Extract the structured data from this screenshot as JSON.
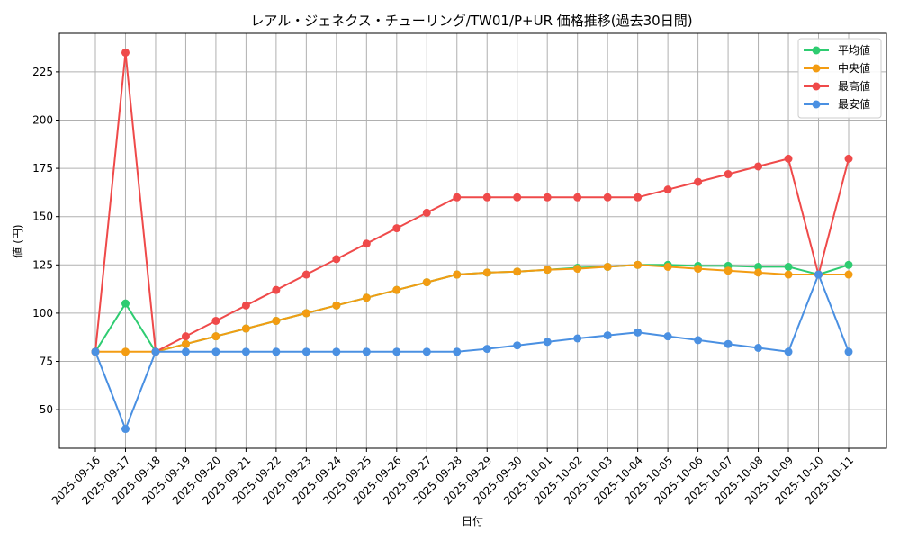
{
  "chart_data": {
    "type": "line",
    "title": "レアル・ジェネクス・チューリング/TW01/P+UR 価格推移(過去30日間)",
    "xlabel": "日付",
    "ylabel": "値 (円)",
    "ylim": [
      30,
      245
    ],
    "yticks": [
      50,
      75,
      100,
      125,
      150,
      175,
      200,
      225
    ],
    "grid": true,
    "legend_position": "top-right",
    "categories": [
      "2025-09-16",
      "2025-09-17",
      "2025-09-18",
      "2025-09-19",
      "2025-09-20",
      "2025-09-21",
      "2025-09-22",
      "2025-09-23",
      "2025-09-24",
      "2025-09-25",
      "2025-09-26",
      "2025-09-27",
      "2025-09-28",
      "2025-09-29",
      "2025-09-30",
      "2025-10-01",
      "2025-10-02",
      "2025-10-03",
      "2025-10-04",
      "2025-10-05",
      "2025-10-06",
      "2025-10-07",
      "2025-10-08",
      "2025-10-09",
      "2025-10-10",
      "2025-10-11"
    ],
    "series": [
      {
        "name": "平均値",
        "color": "#2ecc71",
        "values": [
          80,
          105,
          80,
          84,
          88,
          92,
          96,
          100,
          104,
          108,
          112,
          116,
          120,
          121,
          121.5,
          122.5,
          123.5,
          124,
          125,
          125,
          124.5,
          124.5,
          124,
          124,
          120,
          125
        ]
      },
      {
        "name": "中央値",
        "color": "#f39c12",
        "values": [
          80,
          80,
          80,
          84,
          88,
          92,
          96,
          100,
          104,
          108,
          112,
          116,
          120,
          121,
          121.5,
          122.5,
          123,
          124,
          125,
          124,
          123,
          122,
          121,
          120,
          120,
          120
        ]
      },
      {
        "name": "最高値",
        "color": "#ef4a4a",
        "values": [
          80,
          235,
          80,
          88,
          96,
          104,
          112,
          120,
          128,
          136,
          144,
          152,
          160,
          160,
          160,
          160,
          160,
          160,
          160,
          164,
          168,
          172,
          176,
          180,
          120,
          180
        ]
      },
      {
        "name": "最安値",
        "color": "#4a90e2",
        "values": [
          80,
          40,
          80,
          80,
          80,
          80,
          80,
          80,
          80,
          80,
          80,
          80,
          80,
          81.5,
          83.3,
          85.1,
          86.9,
          88.5,
          90,
          88,
          86,
          84,
          82,
          80,
          120,
          80
        ]
      }
    ]
  }
}
